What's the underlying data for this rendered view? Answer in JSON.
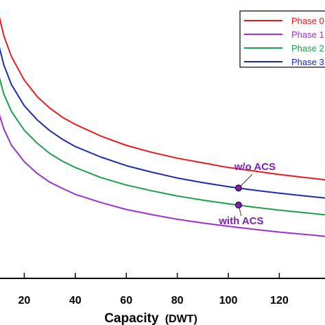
{
  "chart_data": {
    "type": "line",
    "xlabel": "Capacity",
    "xlabel_unit": "(DWT)",
    "xlim": [
      0,
      140
    ],
    "x_ticks": [
      20,
      40,
      60,
      80,
      100,
      120
    ],
    "grid": false,
    "legend_position": "top-right",
    "x": [
      10,
      12,
      15,
      20,
      25,
      30,
      35,
      40,
      50,
      60,
      70,
      80,
      90,
      100,
      110,
      120,
      130,
      140
    ],
    "series": [
      {
        "name": "Phase 0",
        "color": "#e41a1c",
        "values": [
          1.56,
          1.47,
          1.38,
          1.28,
          1.21,
          1.16,
          1.12,
          1.09,
          1.04,
          1.0,
          0.97,
          0.945,
          0.925,
          0.905,
          0.89,
          0.875,
          0.862,
          0.85
        ]
      },
      {
        "name": "Phase 1",
        "color": "#9b30c8",
        "values": [
          1.14,
          1.07,
          1.0,
          0.93,
          0.88,
          0.842,
          0.815,
          0.79,
          0.755,
          0.725,
          0.703,
          0.683,
          0.667,
          0.653,
          0.64,
          0.628,
          0.618,
          0.608
        ]
      },
      {
        "name": "Phase 2",
        "color": "#1a9e4a",
        "values": [
          1.3,
          1.22,
          1.145,
          1.065,
          1.01,
          0.965,
          0.932,
          0.905,
          0.862,
          0.83,
          0.805,
          0.783,
          0.765,
          0.749,
          0.735,
          0.722,
          0.711,
          0.7
        ]
      },
      {
        "name": "Phase 3",
        "color": "#1b2aa8",
        "values": [
          1.43,
          1.345,
          1.26,
          1.17,
          1.11,
          1.063,
          1.026,
          0.995,
          0.95,
          0.913,
          0.885,
          0.86,
          0.84,
          0.823,
          0.808,
          0.795,
          0.783,
          0.772
        ]
      }
    ],
    "markers": [
      {
        "x": 104,
        "y": 0.817,
        "label": "w/o ACS",
        "color": "#7d1fb3"
      },
      {
        "x": 104,
        "y": 0.744,
        "label": "with ACS",
        "color": "#7d1fb3"
      }
    ]
  }
}
